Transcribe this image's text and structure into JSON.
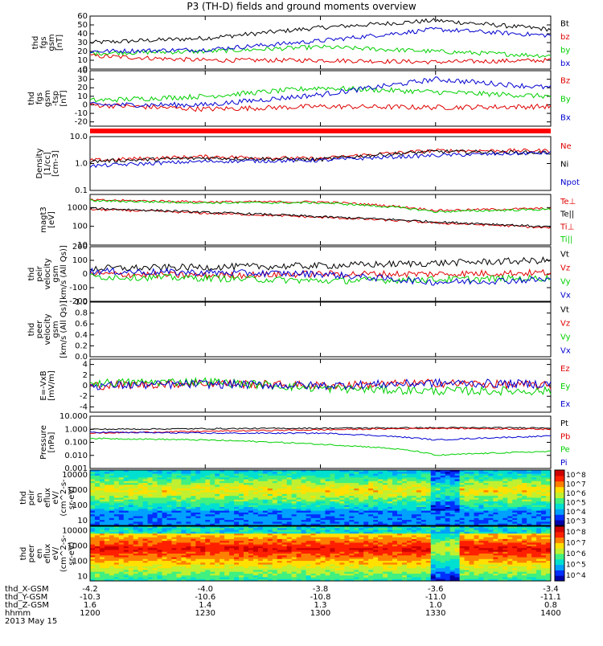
{
  "title": "P3 (TH-D) fields and ground moments overview",
  "colors": {
    "black": "#000000",
    "red": "#e00000",
    "green": "#00d000",
    "blue": "#0000d0"
  },
  "panels": [
    {
      "id": "p1",
      "ylabel": [
        "thd",
        "fgs",
        "gsm",
        "[nT]"
      ],
      "scale": "linear",
      "ylim": [
        0,
        60
      ],
      "ticks": [
        "0",
        "10",
        "20",
        "30",
        "40",
        "50",
        "60"
      ],
      "legend": [
        {
          "text": "Bt",
          "color": "black"
        },
        {
          "text": "bz",
          "color": "red"
        },
        {
          "text": "by",
          "color": "green"
        },
        {
          "text": "bx",
          "color": "blue"
        }
      ]
    },
    {
      "id": "p2",
      "ylabel": [
        "thd",
        "fgs",
        "gsm",
        "-tsp",
        "[nT]"
      ],
      "scale": "linear",
      "ylim": [
        -25,
        40
      ],
      "ticks": [
        "-20",
        "-10",
        "0",
        "10",
        "20",
        "30",
        "40"
      ],
      "legend": [
        {
          "text": "Bz",
          "color": "red"
        },
        {
          "text": "By",
          "color": "green"
        },
        {
          "text": "Bx",
          "color": "blue"
        }
      ]
    },
    {
      "id": "p3",
      "ylabel": [
        "Density",
        "[1/cc]",
        "[cm-3]"
      ],
      "scale": "log",
      "ylim": [
        0.1,
        10
      ],
      "ticks": [
        "0.1",
        "1.0",
        "10.0"
      ],
      "legend": [
        {
          "text": "Ne",
          "color": "red"
        },
        {
          "text": "Ni",
          "color": "black"
        },
        {
          "text": "Npot",
          "color": "blue"
        }
      ]
    },
    {
      "id": "p4",
      "ylabel": [
        "magt3",
        "[eV]"
      ],
      "scale": "log",
      "ylim": [
        10,
        5000
      ],
      "ticks": [
        "10",
        "100",
        "1000"
      ],
      "legend": [
        {
          "text": "Te⊥",
          "color": "red"
        },
        {
          "text": "Te||",
          "color": "black"
        },
        {
          "text": "Ti⊥",
          "color": "red"
        },
        {
          "text": "Ti||",
          "color": "green"
        }
      ]
    },
    {
      "id": "p5",
      "ylabel": [
        "thd",
        "peir",
        "velocity",
        "gsm",
        "[km/s (All Qs)]"
      ],
      "scale": "linear",
      "ylim": [
        -200,
        200
      ],
      "ticks": [
        "-200",
        "-100",
        "0",
        "100",
        "200"
      ],
      "legend": [
        {
          "text": "Vt",
          "color": "black"
        },
        {
          "text": "Vz",
          "color": "red"
        },
        {
          "text": "Vy",
          "color": "green"
        },
        {
          "text": "Vx",
          "color": "blue"
        }
      ]
    },
    {
      "id": "p6",
      "ylabel": [
        "thd",
        "peer",
        "velocity",
        "gsm",
        "[km/s (All Qs)]"
      ],
      "scale": "linear",
      "ylim": [
        0,
        1
      ],
      "ticks": [
        "0.0",
        "0.2",
        "0.4",
        "0.6",
        "0.8",
        "1.0"
      ],
      "legend": [
        {
          "text": "Vt",
          "color": "black"
        },
        {
          "text": "Vz",
          "color": "red"
        },
        {
          "text": "Vy",
          "color": "green"
        },
        {
          "text": "Vx",
          "color": "blue"
        }
      ]
    },
    {
      "id": "p7",
      "ylabel": [
        "E=-VxB",
        "[mV/m]"
      ],
      "scale": "linear",
      "ylim": [
        -5,
        5
      ],
      "ticks": [
        "-4",
        "-2",
        "0",
        "2",
        "4"
      ],
      "legend": [
        {
          "text": "Ez",
          "color": "red"
        },
        {
          "text": "Ey",
          "color": "green"
        },
        {
          "text": "Ex",
          "color": "blue"
        }
      ]
    },
    {
      "id": "p8",
      "ylabel": [
        "Pressure",
        "[nPa]"
      ],
      "scale": "log",
      "ylim": [
        0.001,
        10
      ],
      "ticks": [
        "0.001",
        "0.010",
        "0.100",
        "1.000",
        "10.000"
      ],
      "legend": [
        {
          "text": "Pt",
          "color": "black"
        },
        {
          "text": "Pb",
          "color": "red"
        },
        {
          "text": "Pe",
          "color": "green"
        },
        {
          "text": "Pi",
          "color": "blue"
        }
      ]
    },
    {
      "id": "s1",
      "ylabel": [
        "thd",
        "peir",
        "en",
        "eflux",
        "eV/",
        "(cm^2-s-",
        "sr-eV)"
      ],
      "scale": "log",
      "ylim": [
        5,
        20000
      ],
      "ticks": [
        "10",
        "100",
        "1000",
        "10000"
      ],
      "colorbar": [
        "10^3",
        "10^4",
        "10^5",
        "10^6",
        "10^7",
        "10^8"
      ]
    },
    {
      "id": "s2",
      "ylabel": [
        "thd",
        "peer",
        "en",
        "eflux",
        "eV/",
        "(cm^2-s-",
        "sr-eV)"
      ],
      "scale": "log",
      "ylim": [
        5,
        20000
      ],
      "ticks": [
        "10",
        "100",
        "1000",
        "10000"
      ],
      "colorbar": [
        "10^4",
        "10^5",
        "10^6",
        "10^7",
        "10^8"
      ]
    }
  ],
  "footer": {
    "rows": [
      {
        "label": "thd_X-GSM",
        "values": [
          "-4.2",
          "-4.0",
          "-3.8",
          "-3.6",
          "-3.4"
        ]
      },
      {
        "label": "thd_Y-GSM",
        "values": [
          "-10.3",
          "-10.6",
          "-10.8",
          "-11.0",
          "-11.1"
        ]
      },
      {
        "label": "thd_Z-GSM",
        "values": [
          "1.6",
          "1.4",
          "1.3",
          "1.0",
          "0.8"
        ]
      },
      {
        "label": "hhmm",
        "values": [
          "1200",
          "1230",
          "1300",
          "1330",
          "1400"
        ]
      }
    ],
    "date": "2013 May 15"
  },
  "chart_data": [
    {
      "type": "line",
      "title": "P3 (TH-D) fields and ground moments overview",
      "ylabel": "thd fgs gsm [nT]",
      "ylim": [
        0,
        60
      ],
      "x": [
        "1200",
        "1230",
        "1300",
        "1330",
        "1400"
      ],
      "series": [
        {
          "name": "Bt",
          "color": "#000000",
          "values": [
            30,
            35,
            47,
            55,
            45
          ]
        },
        {
          "name": "bz",
          "color": "#e00000",
          "values": [
            15,
            10,
            10,
            8,
            10
          ]
        },
        {
          "name": "by",
          "color": "#00d000",
          "values": [
            18,
            20,
            25,
            20,
            15
          ]
        },
        {
          "name": "bx",
          "color": "#0000d0",
          "values": [
            20,
            22,
            32,
            45,
            38
          ]
        }
      ]
    },
    {
      "type": "line",
      "ylabel": "thd fgs gsm -tsp [nT]",
      "ylim": [
        -25,
        40
      ],
      "x": [
        "1200",
        "1230",
        "1300",
        "1330",
        "1400"
      ],
      "series": [
        {
          "name": "Bz",
          "color": "#e00000",
          "values": [
            0,
            -5,
            -2,
            -3,
            -2
          ]
        },
        {
          "name": "By",
          "color": "#00d000",
          "values": [
            5,
            10,
            20,
            15,
            10
          ]
        },
        {
          "name": "Bx",
          "color": "#0000d0",
          "values": [
            0,
            0,
            12,
            30,
            20
          ]
        }
      ]
    },
    {
      "type": "line",
      "ylabel": "Density [1/cc] [cm-3]",
      "ylim": [
        0.1,
        10
      ],
      "scale": "log",
      "x": [
        "1200",
        "1230",
        "1300",
        "1330",
        "1400"
      ],
      "series": [
        {
          "name": "Ne",
          "color": "#e00000",
          "values": [
            1.3,
            1.8,
            1.5,
            3.0,
            3.0
          ]
        },
        {
          "name": "Ni",
          "color": "#000000",
          "values": [
            1.2,
            1.6,
            1.4,
            2.8,
            2.5
          ]
        },
        {
          "name": "Npot",
          "color": "#0000d0",
          "values": [
            0.8,
            1.2,
            1.3,
            2.0,
            2.5
          ]
        }
      ]
    },
    {
      "type": "line",
      "ylabel": "magt3 [eV]",
      "ylim": [
        10,
        5000
      ],
      "scale": "log",
      "x": [
        "1200",
        "1230",
        "1300",
        "1330",
        "1400"
      ],
      "series": [
        {
          "name": "Te⊥",
          "color": "#e00000",
          "values": [
            800,
            500,
            300,
            150,
            80
          ]
        },
        {
          "name": "Te||",
          "color": "#000000",
          "values": [
            900,
            550,
            320,
            170,
            90
          ]
        },
        {
          "name": "Ti⊥",
          "color": "#e00000",
          "values": [
            2500,
            2000,
            2000,
            700,
            900
          ]
        },
        {
          "name": "Ti||",
          "color": "#00d000",
          "values": [
            2300,
            1800,
            1800,
            600,
            800
          ]
        }
      ]
    },
    {
      "type": "line",
      "ylabel": "thd peir velocity gsm [km/s (All Qs)]",
      "ylim": [
        -200,
        200
      ],
      "x": [
        "1200",
        "1230",
        "1300",
        "1330",
        "1400"
      ],
      "series": [
        {
          "name": "Vt",
          "color": "#000000",
          "values": [
            40,
            50,
            60,
            80,
            100
          ]
        },
        {
          "name": "Vz",
          "color": "#e00000",
          "values": [
            0,
            -10,
            0,
            0,
            10
          ]
        },
        {
          "name": "Vy",
          "color": "#00d000",
          "values": [
            -20,
            -30,
            -50,
            -40,
            -30
          ]
        },
        {
          "name": "Vx",
          "color": "#0000d0",
          "values": [
            20,
            10,
            0,
            -60,
            -40
          ]
        }
      ]
    },
    {
      "type": "line",
      "ylabel": "thd peer velocity gsm [km/s (All Qs)]",
      "ylim": [
        0,
        1
      ],
      "x": [
        "1200",
        "1230",
        "1300",
        "1330",
        "1400"
      ],
      "series": []
    },
    {
      "type": "line",
      "ylabel": "E=-VxB [mV/m]",
      "ylim": [
        -5,
        5
      ],
      "x": [
        "1200",
        "1230",
        "1300",
        "1330",
        "1400"
      ],
      "series": [
        {
          "name": "Ez",
          "color": "#e00000",
          "values": [
            0,
            0.5,
            0,
            0.5,
            0
          ]
        },
        {
          "name": "Ey",
          "color": "#00d000",
          "values": [
            0.5,
            0.8,
            -0.5,
            -1,
            -1
          ]
        },
        {
          "name": "Ex",
          "color": "#0000d0",
          "values": [
            0,
            0.3,
            0,
            0.5,
            0.3
          ]
        }
      ]
    },
    {
      "type": "line",
      "ylabel": "Pressure [nPa]",
      "ylim": [
        0.001,
        10
      ],
      "scale": "log",
      "x": [
        "1200",
        "1230",
        "1300",
        "1330",
        "1400"
      ],
      "series": [
        {
          "name": "Pt",
          "color": "#000000",
          "values": [
            1.0,
            1.1,
            1.2,
            1.3,
            1.3
          ]
        },
        {
          "name": "Pb",
          "color": "#e00000",
          "values": [
            0.5,
            0.7,
            0.9,
            1.2,
            1.0
          ]
        },
        {
          "name": "Pe",
          "color": "#00d000",
          "values": [
            0.2,
            0.15,
            0.07,
            0.01,
            0.02
          ]
        },
        {
          "name": "Pi",
          "color": "#0000d0",
          "values": [
            0.6,
            0.5,
            0.5,
            0.15,
            0.3
          ]
        }
      ]
    },
    {
      "type": "heatmap",
      "ylabel": "thd peir en eflux eV/(cm^2-s-sr-eV)",
      "ylim": [
        5,
        20000
      ],
      "scale": "log",
      "x": [
        "1200",
        "1230",
        "1300",
        "1330",
        "1400"
      ],
      "colorbar": [
        "10^3",
        "10^4",
        "10^5",
        "10^6",
        "10^7",
        "10^8"
      ]
    },
    {
      "type": "heatmap",
      "ylabel": "thd peer en eflux eV/(cm^2-s-sr-eV)",
      "ylim": [
        5,
        20000
      ],
      "scale": "log",
      "x": [
        "1200",
        "1230",
        "1300",
        "1330",
        "1400"
      ],
      "colorbar": [
        "10^4",
        "10^5",
        "10^6",
        "10^7",
        "10^8"
      ]
    }
  ]
}
